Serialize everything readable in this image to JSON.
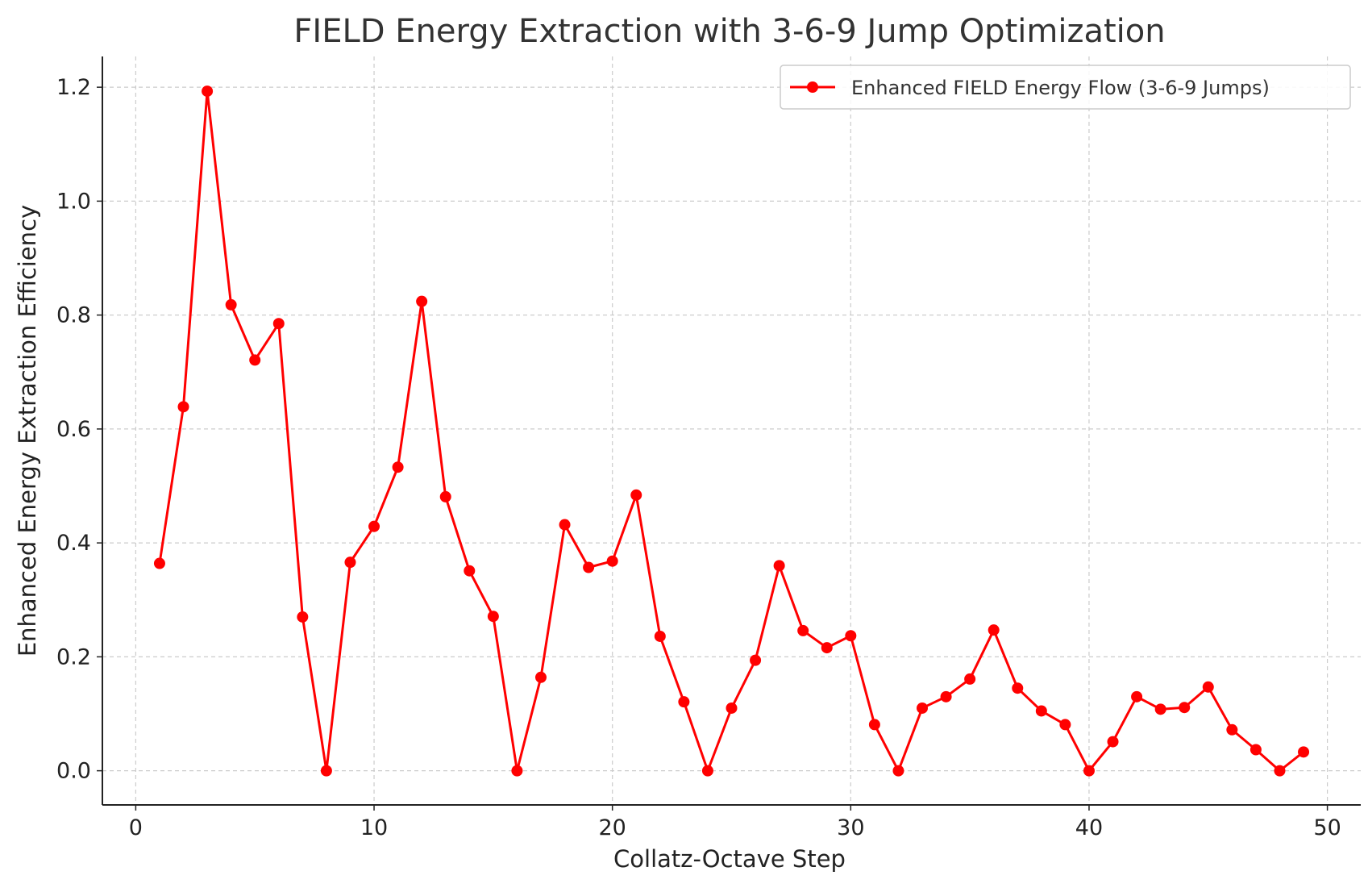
{
  "chart_data": {
    "type": "line",
    "title": "FIELD Energy Extraction with 3-6-9 Jump Optimization",
    "xlabel": "Collatz-Octave Step",
    "ylabel": "Enhanced Energy Extraction Efficiency",
    "xlim": [
      -1.4,
      51.4
    ],
    "ylim": [
      -0.06,
      1.254
    ],
    "xticks": [
      0,
      10,
      20,
      30,
      40,
      50
    ],
    "xtick_labels": [
      "0",
      "10",
      "20",
      "30",
      "40",
      "50"
    ],
    "yticks": [
      0.0,
      0.2,
      0.4,
      0.6,
      0.8,
      1.0,
      1.2
    ],
    "ytick_labels": [
      "0.0",
      "0.2",
      "0.4",
      "0.6",
      "0.8",
      "1.0",
      "1.2"
    ],
    "grid": true,
    "legend_position": "top-right",
    "series": [
      {
        "name": "Enhanced FIELD Energy Flow (3-6-9 Jumps)",
        "color": "#ff0000",
        "marker": "circle",
        "x": [
          1,
          2,
          3,
          4,
          5,
          6,
          7,
          8,
          9,
          10,
          11,
          12,
          13,
          14,
          15,
          16,
          17,
          18,
          19,
          20,
          21,
          22,
          23,
          24,
          25,
          26,
          27,
          28,
          29,
          30,
          31,
          32,
          33,
          34,
          35,
          36,
          37,
          38,
          39,
          40,
          41,
          42,
          43,
          44,
          45,
          46,
          47,
          48,
          49
        ],
        "y": [
          0.364,
          0.639,
          1.193,
          0.818,
          0.721,
          0.785,
          0.27,
          0.0,
          0.366,
          0.429,
          0.533,
          0.824,
          0.481,
          0.351,
          0.271,
          0.0,
          0.164,
          0.432,
          0.357,
          0.368,
          0.484,
          0.236,
          0.121,
          0.0,
          0.11,
          0.194,
          0.36,
          0.246,
          0.216,
          0.237,
          0.081,
          0.0,
          0.11,
          0.13,
          0.161,
          0.247,
          0.145,
          0.105,
          0.081,
          0.0,
          0.051,
          0.13,
          0.108,
          0.111,
          0.147,
          0.072,
          0.037,
          0.0,
          0.033
        ]
      }
    ]
  }
}
